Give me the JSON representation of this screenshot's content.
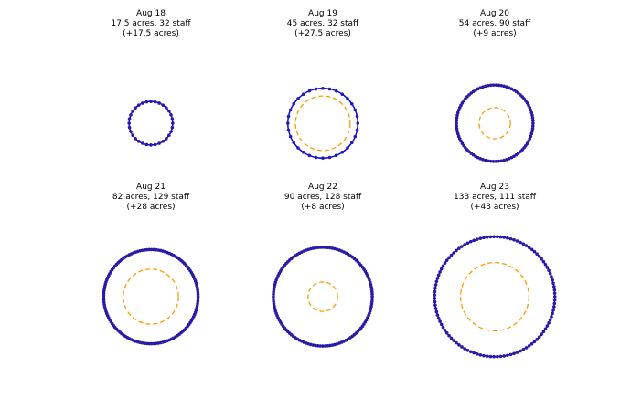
{
  "chart_data": [
    {
      "type": "ring",
      "title": "Aug 18",
      "subtitle": "17.5 acres, 32 staff",
      "note": "(+17.5 acres)",
      "acres": 17.5,
      "staff": 32,
      "increase": 17.5,
      "color": "#0000ff",
      "dot_color": "#2a1aa8",
      "increase_color": "#ff9900"
    },
    {
      "type": "ring",
      "title": "Aug 19",
      "subtitle": "45 acres, 32 staff",
      "note": "(+27.5 acres)",
      "acres": 45,
      "staff": 32,
      "increase": 27.5,
      "color": "#0000ff",
      "dot_color": "#2a1aa8",
      "increase_color": "#ff9900"
    },
    {
      "type": "ring",
      "title": "Aug 20",
      "subtitle": "54 acres, 90 staff",
      "note": "(+9 acres)",
      "acres": 54,
      "staff": 90,
      "increase": 9,
      "color": "#0000ff",
      "dot_color": "#2a1aa8",
      "increase_color": "#ff9900"
    },
    {
      "type": "ring",
      "title": "Aug 21",
      "subtitle": "82 acres, 129 staff",
      "note": "(+28 acres)",
      "acres": 82,
      "staff": 129,
      "increase": 28,
      "color": "#0000ff",
      "dot_color": "#2a1aa8",
      "increase_color": "#ff9900"
    },
    {
      "type": "ring",
      "title": "Aug 22",
      "subtitle": "90 acres, 128 staff",
      "note": "(+8 acres)",
      "acres": 90,
      "staff": 128,
      "increase": 8,
      "color": "#0000ff",
      "dot_color": "#2a1aa8",
      "increase_color": "#ff9900"
    },
    {
      "type": "ring",
      "title": "Aug 23",
      "subtitle": "133 acres, 111 staff",
      "note": "(+43 acres)",
      "acres": 133,
      "staff": 111,
      "increase": 43,
      "color": "#0000ff",
      "dot_color": "#2a1aa8",
      "increase_color": "#ff9900"
    }
  ]
}
